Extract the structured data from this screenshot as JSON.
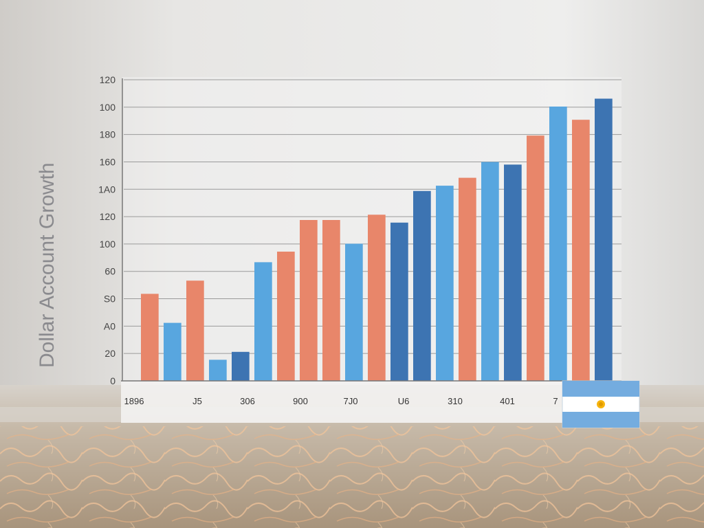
{
  "chart_data": {
    "type": "bar",
    "ylabel": "Dollar Account Growth",
    "y_tick_labels": [
      "0",
      "20",
      "A0",
      "S0",
      "60",
      "100",
      "120",
      "1A0",
      "160",
      "180",
      "100",
      "120"
    ],
    "x_tick_labels": [
      "1896",
      "J5",
      "306",
      "900",
      "7J0",
      "U6",
      "310",
      "401",
      "7"
    ],
    "grid": true,
    "legend": "none",
    "colors": {
      "orange": "#e8866a",
      "light_blue": "#58a6df",
      "dark_blue": "#3d74b2"
    },
    "bars": [
      {
        "value": 33,
        "color": "orange"
      },
      {
        "value": 22,
        "color": "light_blue"
      },
      {
        "value": 38,
        "color": "orange"
      },
      {
        "value": 8,
        "color": "light_blue"
      },
      {
        "value": 11,
        "color": "dark_blue"
      },
      {
        "value": 45,
        "color": "light_blue"
      },
      {
        "value": 49,
        "color": "orange"
      },
      {
        "value": 61,
        "color": "orange"
      },
      {
        "value": 61,
        "color": "orange"
      },
      {
        "value": 52,
        "color": "light_blue"
      },
      {
        "value": 63,
        "color": "orange"
      },
      {
        "value": 60,
        "color": "dark_blue"
      },
      {
        "value": 72,
        "color": "dark_blue"
      },
      {
        "value": 74,
        "color": "light_blue"
      },
      {
        "value": 77,
        "color": "orange"
      },
      {
        "value": 83,
        "color": "light_blue"
      },
      {
        "value": 82,
        "color": "dark_blue"
      },
      {
        "value": 93,
        "color": "orange"
      },
      {
        "value": 104,
        "color": "light_blue"
      },
      {
        "value": 99,
        "color": "orange"
      },
      {
        "value": 107,
        "color": "dark_blue"
      }
    ]
  }
}
